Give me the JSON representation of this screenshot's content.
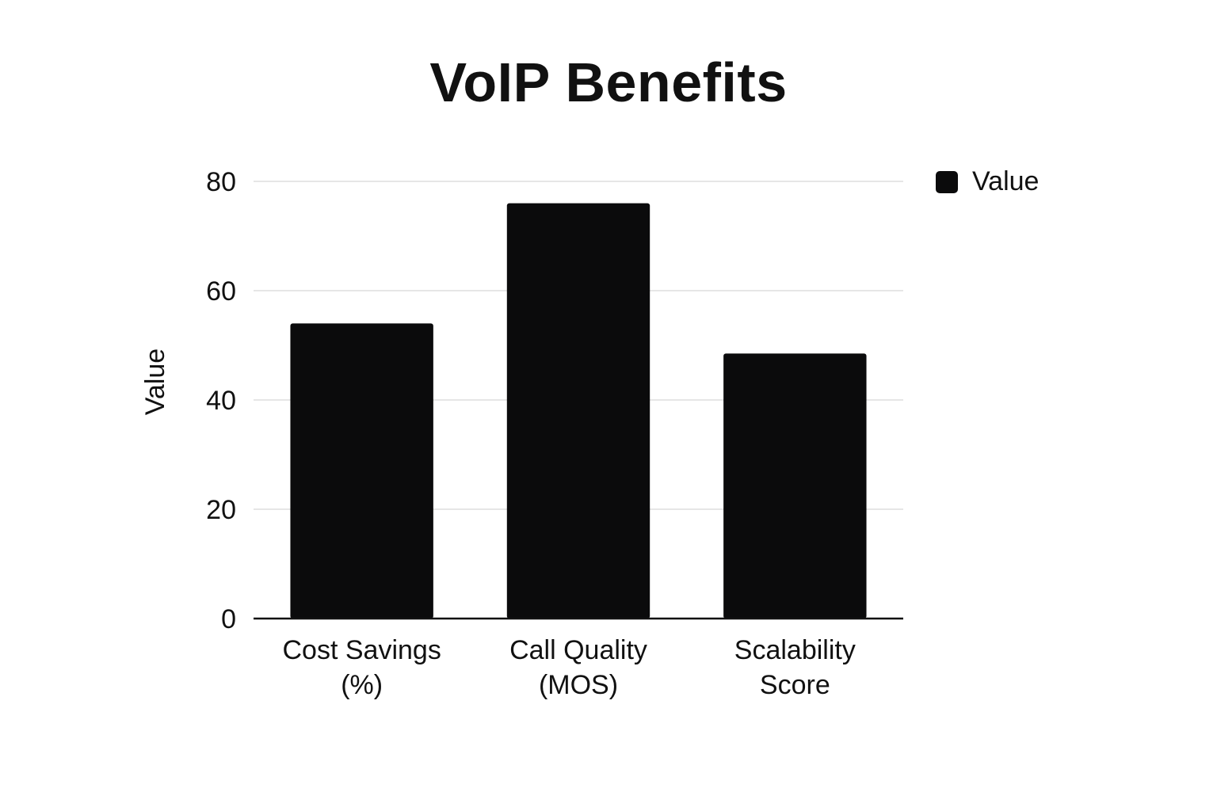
{
  "chart_data": {
    "type": "bar",
    "title": "VoIP Benefits",
    "xlabel": "",
    "ylabel": "Value",
    "categories": [
      "Cost Savings (%)",
      "Call Quality (MOS)",
      "Scalability Score"
    ],
    "category_lines": [
      [
        "Cost Savings",
        "(%)"
      ],
      [
        "Call Quality",
        "(MOS)"
      ],
      [
        "Scalability",
        "Score"
      ]
    ],
    "series": [
      {
        "name": "Value",
        "values": [
          54,
          76,
          48.5
        ],
        "color": "#0b0b0c"
      }
    ],
    "ylim": [
      0,
      80
    ],
    "yticks": [
      0,
      20,
      40,
      60,
      80
    ],
    "grid": true,
    "legend_position": "top-right",
    "gridline_color": "#dddddd"
  }
}
